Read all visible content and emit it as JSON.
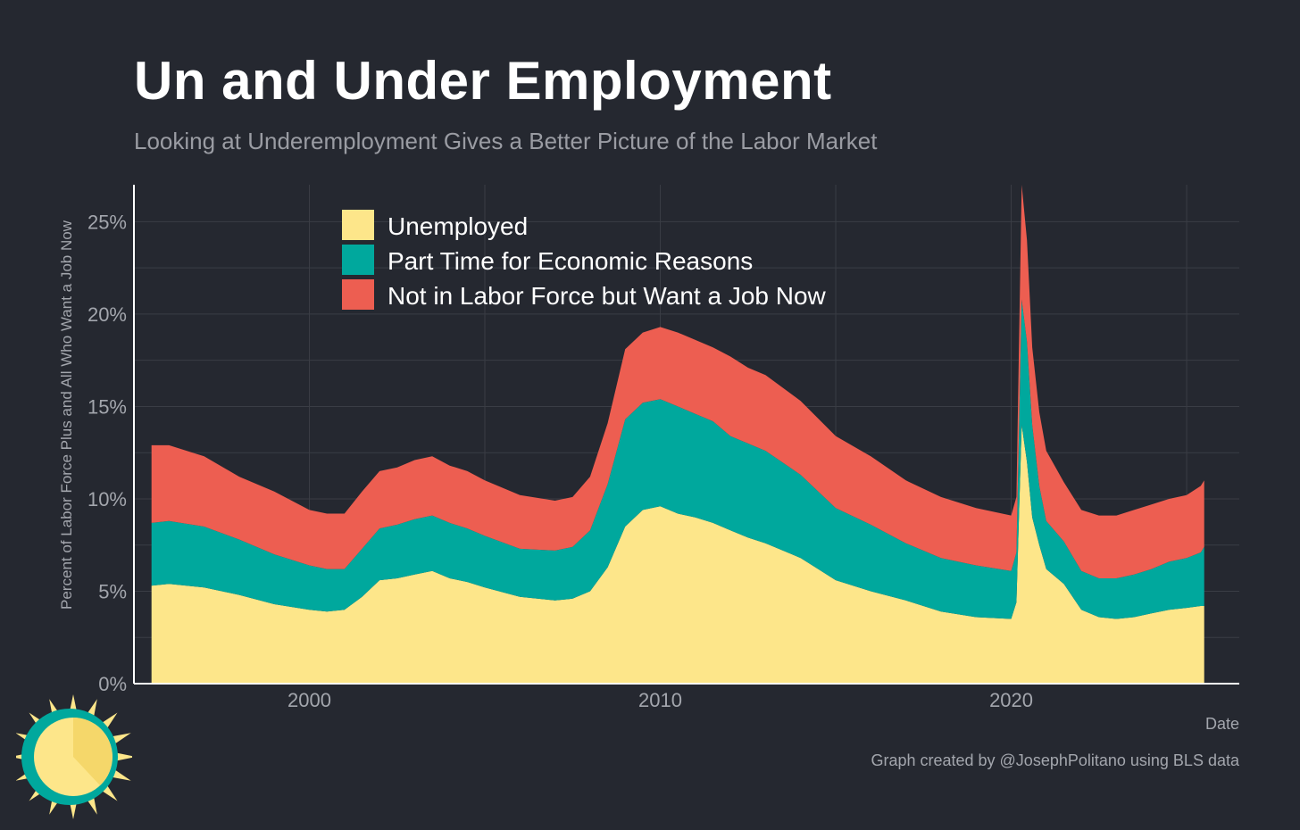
{
  "colors": {
    "background": "#252830",
    "unemployed": "#fde68a",
    "part_time": "#00a89d",
    "not_in_lf": "#ed5e51",
    "grid": "#3a3d45",
    "axis": "#ffffff"
  },
  "chart_data": {
    "type": "area",
    "stacked": true,
    "title": "Un and Under Employment",
    "subtitle": "Looking at Underemployment Gives a Better Picture of the Labor Market",
    "xlabel": "Date",
    "ylabel": "Percent of Labor Force Plus and All Who Want a Job Now",
    "xlim": [
      1995.0,
      2026.5
    ],
    "ylim": [
      0,
      27
    ],
    "x_ticks": [
      2000,
      2010,
      2020
    ],
    "y_ticks": [
      0,
      5,
      10,
      15,
      20,
      25
    ],
    "y_tick_labels": [
      "0%",
      "5%",
      "10%",
      "15%",
      "20%",
      "25%"
    ],
    "grid": true,
    "legend_position": "top-left",
    "x": [
      1995.5,
      1996.0,
      1997.0,
      1998.0,
      1999.0,
      2000.0,
      2000.5,
      2001.0,
      2001.5,
      2002.0,
      2002.5,
      2003.0,
      2003.5,
      2004.0,
      2004.5,
      2005.0,
      2006.0,
      2007.0,
      2007.5,
      2008.0,
      2008.5,
      2009.0,
      2009.5,
      2010.0,
      2010.5,
      2011.0,
      2011.5,
      2012.0,
      2012.5,
      2013.0,
      2014.0,
      2015.0,
      2016.0,
      2017.0,
      2018.0,
      2019.0,
      2020.0,
      2020.15,
      2020.3,
      2020.45,
      2020.6,
      2020.8,
      2021.0,
      2021.5,
      2022.0,
      2022.5,
      2023.0,
      2023.5,
      2024.0,
      2024.5,
      2025.0,
      2025.4,
      2025.5
    ],
    "series": [
      {
        "name": "Unemployed",
        "values": [
          5.3,
          5.4,
          5.2,
          4.8,
          4.3,
          4.0,
          3.9,
          4.0,
          4.7,
          5.6,
          5.7,
          5.9,
          6.1,
          5.7,
          5.5,
          5.2,
          4.7,
          4.5,
          4.6,
          5.0,
          6.3,
          8.5,
          9.4,
          9.6,
          9.2,
          9.0,
          8.7,
          8.3,
          7.9,
          7.6,
          6.8,
          5.6,
          5.0,
          4.5,
          3.9,
          3.6,
          3.5,
          4.4,
          14.0,
          12.0,
          9.0,
          7.5,
          6.2,
          5.4,
          4.0,
          3.6,
          3.5,
          3.6,
          3.8,
          4.0,
          4.1,
          4.2,
          4.2
        ],
        "color": "#fde68a"
      },
      {
        "name": "Part Time for Economic Reasons",
        "values": [
          3.4,
          3.4,
          3.3,
          3.0,
          2.7,
          2.4,
          2.3,
          2.2,
          2.6,
          2.8,
          2.9,
          3.0,
          3.0,
          3.0,
          2.9,
          2.8,
          2.6,
          2.7,
          2.8,
          3.3,
          4.5,
          5.8,
          5.8,
          5.8,
          5.8,
          5.6,
          5.5,
          5.1,
          5.1,
          5.0,
          4.5,
          3.9,
          3.6,
          3.1,
          2.9,
          2.8,
          2.6,
          2.7,
          6.8,
          6.5,
          5.0,
          3.2,
          2.6,
          2.3,
          2.1,
          2.1,
          2.2,
          2.3,
          2.4,
          2.6,
          2.7,
          2.9,
          3.2
        ],
        "color": "#00a89d"
      },
      {
        "name": "Not in Labor Force but Want a Job Now",
        "values": [
          4.2,
          4.1,
          3.8,
          3.4,
          3.4,
          3.0,
          3.0,
          3.0,
          3.1,
          3.1,
          3.1,
          3.2,
          3.2,
          3.1,
          3.1,
          3.0,
          2.9,
          2.7,
          2.7,
          2.9,
          3.3,
          3.8,
          3.8,
          3.9,
          4.0,
          4.0,
          4.0,
          4.3,
          4.1,
          4.1,
          4.0,
          3.9,
          3.7,
          3.4,
          3.3,
          3.1,
          3.0,
          3.0,
          6.2,
          5.5,
          4.2,
          4.0,
          3.8,
          3.2,
          3.3,
          3.4,
          3.4,
          3.5,
          3.5,
          3.4,
          3.4,
          3.6,
          3.6
        ],
        "color": "#ed5e51"
      }
    ]
  },
  "footer": {
    "credit": "Graph created by @JosephPolitano using BLS data"
  }
}
